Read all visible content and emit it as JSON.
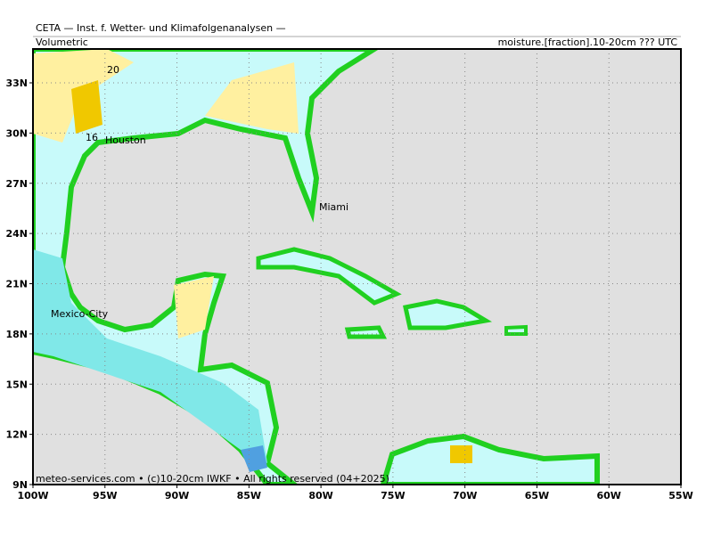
{
  "header": {
    "title": "CETA — Inst. f. Wetter- und Klimafolgenanalysen —",
    "left": "Volumetric",
    "right": "moisture.[fraction].10-20cm ??? UTC"
  },
  "lat_labels": [
    "33N",
    "30N",
    "27N",
    "24N",
    "21N",
    "18N",
    "15N",
    "12N",
    "9N"
  ],
  "lon_labels": [
    "100W",
    "95W",
    "90W",
    "85W",
    "80W",
    "75W",
    "70W",
    "65W",
    "60W",
    "55W"
  ],
  "cities": [
    "Houston",
    "Miami",
    "Mexico-City"
  ],
  "contour_labels": [
    "20",
    "16"
  ],
  "footer": "meteo-services.com • (c)10-20cm IWKF • All rights reserved (04+2025)"
}
